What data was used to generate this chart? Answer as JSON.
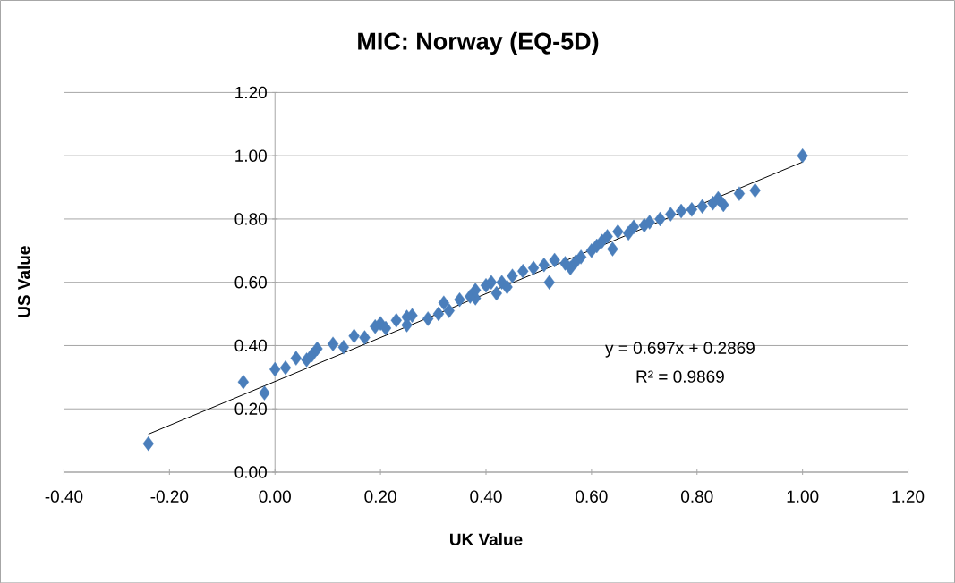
{
  "chart_data": {
    "type": "scatter",
    "title": "MIC: Norway (EQ-5D)",
    "xlabel": "UK Value",
    "ylabel": "US Value",
    "xlim": [
      -0.4,
      1.2
    ],
    "ylim": [
      0,
      1.2
    ],
    "xticks": [
      {
        "value": -0.4,
        "label": "-0.40"
      },
      {
        "value": -0.2,
        "label": "-0.20"
      },
      {
        "value": 0,
        "label": "0.00"
      },
      {
        "value": 0.2,
        "label": "0.20"
      },
      {
        "value": 0.4,
        "label": "0.40"
      },
      {
        "value": 0.6,
        "label": "0.60"
      },
      {
        "value": 0.8,
        "label": "0.80"
      },
      {
        "value": 1.0,
        "label": "1.00"
      },
      {
        "value": 1.2,
        "label": "1.20"
      }
    ],
    "yticks": [
      {
        "value": 0,
        "label": "0.00"
      },
      {
        "value": 0.2,
        "label": "0.20"
      },
      {
        "value": 0.4,
        "label": "0.40"
      },
      {
        "value": 0.6,
        "label": "0.60"
      },
      {
        "value": 0.8,
        "label": "0.80"
      },
      {
        "value": 1.0,
        "label": "1.00"
      },
      {
        "value": 1.2,
        "label": "1.20"
      }
    ],
    "grid": "y",
    "marker": "diamond",
    "annotations": [
      "y = 0.697x + 0.2869",
      "R² = 0.9869"
    ],
    "series": [
      {
        "color": "#4a7ebb",
        "x": [
          -0.24,
          -0.06,
          -0.02,
          0.0,
          0.02,
          0.04,
          0.06,
          0.07,
          0.08,
          0.11,
          0.13,
          0.15,
          0.17,
          0.19,
          0.2,
          0.21,
          0.23,
          0.25,
          0.25,
          0.26,
          0.29,
          0.31,
          0.32,
          0.33,
          0.35,
          0.37,
          0.38,
          0.38,
          0.4,
          0.41,
          0.42,
          0.43,
          0.44,
          0.45,
          0.47,
          0.49,
          0.51,
          0.52,
          0.53,
          0.55,
          0.56,
          0.57,
          0.58,
          0.6,
          0.61,
          0.62,
          0.63,
          0.64,
          0.65,
          0.67,
          0.68,
          0.7,
          0.71,
          0.73,
          0.75,
          0.77,
          0.79,
          0.81,
          0.83,
          0.84,
          0.85,
          0.88,
          0.91,
          1.0
        ],
        "values": [
          0.09,
          0.285,
          0.25,
          0.325,
          0.33,
          0.36,
          0.355,
          0.37,
          0.39,
          0.405,
          0.395,
          0.43,
          0.425,
          0.46,
          0.47,
          0.455,
          0.48,
          0.465,
          0.49,
          0.495,
          0.485,
          0.5,
          0.535,
          0.51,
          0.545,
          0.555,
          0.55,
          0.575,
          0.59,
          0.6,
          0.565,
          0.6,
          0.585,
          0.62,
          0.635,
          0.645,
          0.655,
          0.6,
          0.67,
          0.66,
          0.645,
          0.665,
          0.68,
          0.7,
          0.715,
          0.73,
          0.745,
          0.705,
          0.76,
          0.755,
          0.775,
          0.78,
          0.79,
          0.8,
          0.815,
          0.825,
          0.83,
          0.84,
          0.85,
          0.865,
          0.845,
          0.88,
          0.89,
          1.0
        ]
      },
      {
        "type": "line",
        "color": "#000000",
        "marker": "none",
        "x": [
          -0.24,
          1.0
        ],
        "values": [
          0.12,
          0.98
        ]
      }
    ]
  }
}
